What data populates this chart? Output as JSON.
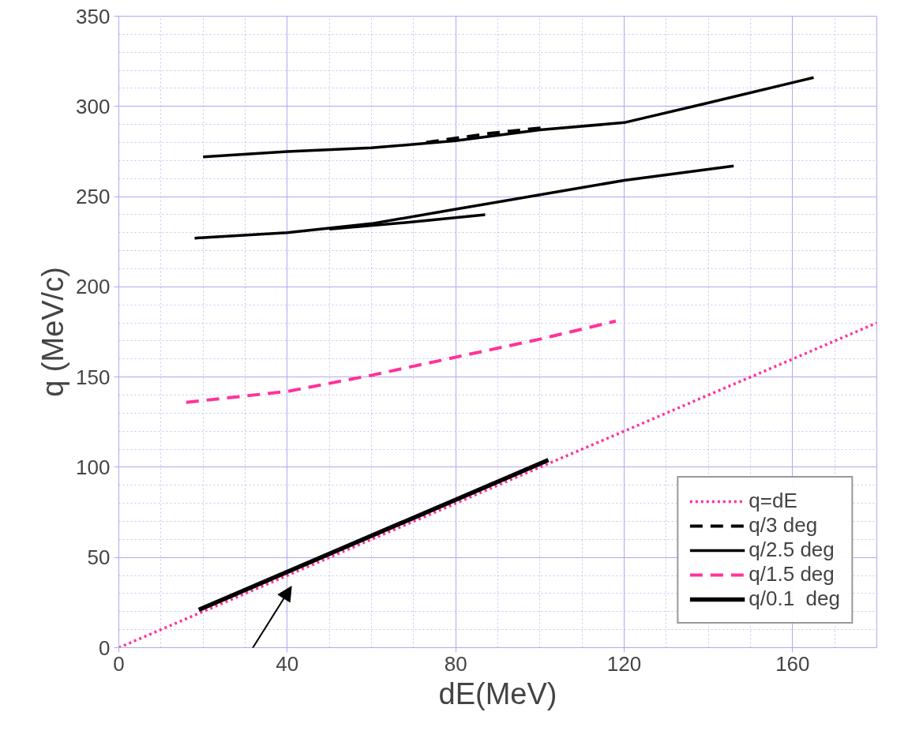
{
  "chart_data": {
    "type": "line",
    "xlabel": "dE(MeV)",
    "ylabel": "q (MeV/c)",
    "xlim": [
      0,
      180
    ],
    "ylim": [
      0,
      350
    ],
    "xticks": [
      0,
      40,
      80,
      120,
      160
    ],
    "yticks": [
      0,
      50,
      100,
      150,
      200,
      250,
      300,
      350
    ],
    "grid": true,
    "legend": "bottom right",
    "series": [
      {
        "name": "q=dE",
        "color": "#ff3399",
        "line_style": "dotted",
        "x": [
          0,
          180
        ],
        "values": [
          0,
          180
        ]
      },
      {
        "name": "q/3 deg",
        "color": "#000000",
        "line_style": "dashed",
        "x": [
          73,
          88,
          102
        ],
        "values": [
          280,
          285,
          288.5
        ]
      },
      {
        "name": "q/2.5 deg",
        "color": "#000000",
        "line_style": "solid",
        "x": [
          18,
          40,
          60,
          80,
          100,
          120,
          146
        ],
        "values": [
          227,
          230,
          235,
          243,
          251,
          259,
          267
        ]
      },
      {
        "name": "q/1.5 deg",
        "color": "#ff3399",
        "line_style": "dashed",
        "x": [
          16,
          40,
          60,
          80,
          100,
          118
        ],
        "values": [
          136,
          142,
          151,
          161,
          171,
          181
        ]
      },
      {
        "name": "q/0.1  deg",
        "color": "#000000",
        "line_style": "solid",
        "x": [
          19,
          102
        ],
        "values": [
          21,
          104
        ]
      },
      {
        "color": "#000000",
        "line_style": "solid",
        "x": [
          20,
          40,
          60,
          80,
          100,
          120,
          140,
          165
        ],
        "values": [
          272,
          275,
          277,
          281,
          287,
          291,
          302,
          316
        ]
      },
      {
        "color": "#000000",
        "line_style": "solid",
        "x": [
          50,
          70,
          87
        ],
        "values": [
          232,
          236,
          240
        ]
      }
    ]
  }
}
